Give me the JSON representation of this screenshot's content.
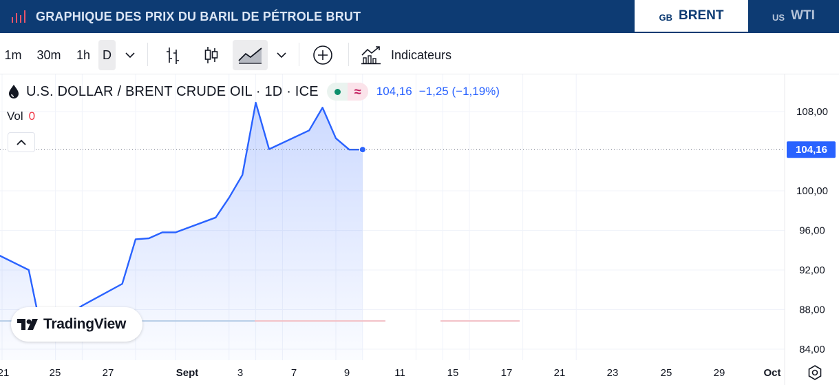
{
  "header": {
    "title": "GRAPHIQUE DES PRIX DU BARIL DE PÉTROLE BRUT",
    "tabs": [
      {
        "code": "GB",
        "label": "BRENT",
        "active": true
      },
      {
        "code": "US",
        "label": "WTI",
        "active": false
      }
    ]
  },
  "toolbar": {
    "intervals": [
      "1m",
      "30m",
      "1h",
      "D"
    ],
    "active_interval": "D",
    "indicators_label": "Indicateurs"
  },
  "legend": {
    "symbol": "U.S. DOLLAR / BRENT CRUDE OIL · 1D · ICE",
    "status_icon": "≈",
    "last": "104,16",
    "change": "−1,25 (−1,19%)",
    "vol_label": "Vol",
    "vol_value": "0"
  },
  "colors": {
    "header_bg": "#0d3b73",
    "line": "#2962ff",
    "price_tag": "#2962ff"
  },
  "chart_data": {
    "type": "area",
    "x": [
      "2021-08-20",
      "2021-08-23",
      "2021-08-24",
      "2021-08-27",
      "2021-08-30",
      "2021-08-31",
      "2021-09-01",
      "2021-09-02",
      "2021-09-03",
      "2021-09-06",
      "2021-09-07",
      "2021-09-08",
      "2021-09-09",
      "2021-09-10",
      "2021-09-13",
      "2021-09-14",
      "2021-09-15",
      "2021-09-16",
      "2021-09-17"
    ],
    "values": [
      94.0,
      92.0,
      85.5,
      88.4,
      90.6,
      95.1,
      95.2,
      95.8,
      95.8,
      97.3,
      99.3,
      101.6,
      108.9,
      104.2,
      106.1,
      108.4,
      105.3,
      104.16,
      104.16
    ],
    "y_ticks": [
      "108,00",
      "100,00",
      "96,00",
      "92,00",
      "88,00",
      "84,00"
    ],
    "x_ticks": [
      "21",
      "25",
      "27",
      "Sept",
      "3",
      "7",
      "9",
      "11",
      "15",
      "17",
      "21",
      "23",
      "25",
      "29",
      "Oct"
    ],
    "ylim": [
      83,
      112
    ],
    "last_price_label": "104,16",
    "grid": true
  }
}
